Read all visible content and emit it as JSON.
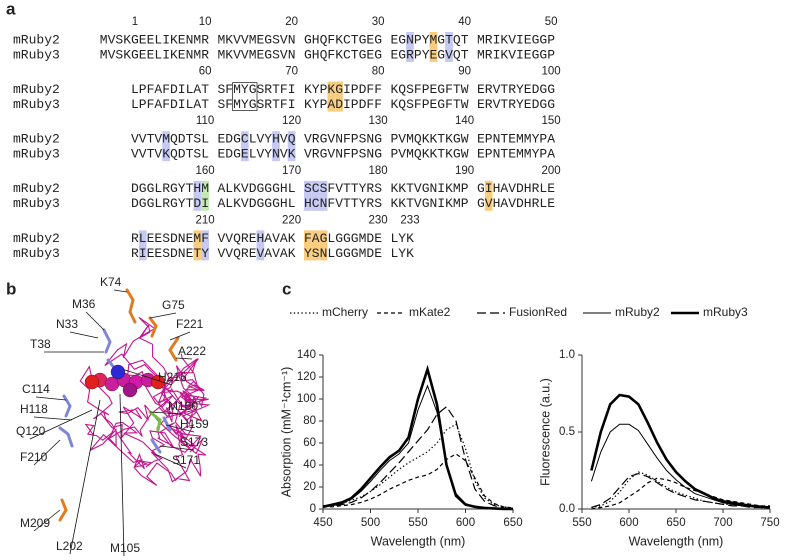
{
  "panel_labels": [
    "a",
    "b",
    "c"
  ],
  "alignment": {
    "rows": [
      {
        "numbers": [
          1,
          10,
          20,
          30,
          40,
          50
        ],
        "seqs": [
          {
            "name": "mRuby2",
            "blocks": [
              "MVSKGEELIKENMR",
              "MKVVMEGSVN",
              "GHQFKCTGEG",
              "EGNPYMGTQT",
              "MRIKVIEGGP"
            ]
          },
          {
            "name": "mRuby3",
            "blocks": [
              "MVSKGEELIKENMR",
              "MKVVMEGSVN",
              "GHQFKCTGEG",
              "EGRPYEGVQT",
              "MRIKVIEGGP"
            ]
          }
        ]
      },
      {
        "numbers": [
          60,
          70,
          80,
          90,
          100
        ],
        "seqs": [
          {
            "name": "mRuby2",
            "blocks": [
              "LPFAFDILAT",
              "SFMYGSRTFI",
              "KYPKGIPDFF",
              "KQSFPEGFTW",
              "ERVTRYEDGG"
            ]
          },
          {
            "name": "mRuby3",
            "blocks": [
              "LPFAFDILAT",
              "SFMYGSRTFI",
              "KYPADIPDFF",
              "KQSFPEGFTW",
              "ERVTRYEDGG"
            ]
          }
        ]
      },
      {
        "numbers": [
          110,
          120,
          130,
          140,
          150
        ],
        "seqs": [
          {
            "name": "mRuby2",
            "blocks": [
              "VVTVMQDTSL",
              "EDGCLVYHVQ",
              "VRGVNFPSNG",
              "PVMQKKTKGW",
              "EPNTEMMYPA"
            ]
          },
          {
            "name": "mRuby3",
            "blocks": [
              "VVTVKQDTSL",
              "EDGELVYNVK",
              "VRGVNFPSNG",
              "PVMQKKTKGW",
              "EPNTEMMYPA"
            ]
          }
        ]
      },
      {
        "numbers": [
          160,
          170,
          180,
          190,
          200
        ],
        "seqs": [
          {
            "name": "mRuby2",
            "blocks": [
              "DGGLRGYTHM",
              "ALKVDGGGHL",
              "SCSFVTTYRS",
              "KKTVGNIKMP",
              "GIHAVDHRLE"
            ]
          },
          {
            "name": "mRuby3",
            "blocks": [
              "DGGLRGYTDI",
              "ALKVDGGGHL",
              "HCNFVTTYRS",
              "KKTVGNIKMP",
              "GVHAVDHRLE"
            ]
          }
        ]
      },
      {
        "numbers": [
          210,
          220,
          230,
          233
        ],
        "seqs": [
          {
            "name": "mRuby2",
            "blocks": [
              "RLEESDNEMF",
              "VVQREHAVAK",
              "FAGLGGGMDE",
              "LYK"
            ]
          },
          {
            "name": "mRuby3",
            "blocks": [
              "RIEESDNETY",
              "VVQREVAVAK",
              "YSNLGGGMDE",
              "LYK"
            ]
          }
        ]
      }
    ]
  },
  "structure": {
    "labels": [
      "K74",
      "G75",
      "M36",
      "N33",
      "F221",
      "T38",
      "A222",
      "H216",
      "C114",
      "M160",
      "H118",
      "H159",
      "Q120",
      "S173",
      "F210",
      "S171",
      "M209",
      "L202",
      "M105"
    ]
  },
  "chart_data": [
    {
      "type": "line",
      "legend": "top",
      "xlabel": "Wavelength (nm)",
      "ylabel": "Absorption (mM⁻¹cm⁻¹)",
      "x": [
        450,
        460,
        470,
        480,
        490,
        500,
        510,
        520,
        530,
        540,
        550,
        560,
        570,
        580,
        590,
        600,
        610,
        620,
        630,
        640,
        650
      ],
      "xlim": [
        450,
        650
      ],
      "xticks": [
        450,
        500,
        550,
        600,
        650
      ],
      "ylim": [
        0,
        140
      ],
      "yticks": [
        0,
        20,
        40,
        60,
        80,
        100,
        120,
        140
      ],
      "series": [
        {
          "name": "mCherry",
          "color": "#000000",
          "dash": "dotted",
          "width": 1.2,
          "values": [
            3,
            4,
            5,
            8,
            11,
            16,
            22,
            29,
            36,
            42,
            47,
            52,
            60,
            72,
            77,
            55,
            25,
            10,
            4,
            2,
            1
          ]
        },
        {
          "name": "mKate2",
          "color": "#000000",
          "dash": "dash",
          "width": 1.2,
          "values": [
            2,
            2,
            3,
            4,
            6,
            9,
            13,
            18,
            22,
            26,
            29,
            31,
            36,
            45,
            50,
            44,
            28,
            12,
            5,
            2,
            1
          ]
        },
        {
          "name": "FusionRed",
          "color": "#000000",
          "dash": "longdash",
          "width": 1.2,
          "values": [
            2,
            3,
            4,
            6,
            10,
            16,
            24,
            33,
            42,
            52,
            62,
            72,
            86,
            93,
            80,
            45,
            18,
            7,
            3,
            1,
            0
          ]
        },
        {
          "name": "mRuby2",
          "color": "#000000",
          "dash": "solid",
          "width": 1,
          "values": [
            2,
            3,
            5,
            9,
            16,
            25,
            35,
            44,
            50,
            60,
            90,
            112,
            88,
            40,
            14,
            5,
            2,
            1,
            0.5,
            0,
            0
          ]
        },
        {
          "name": "mRuby3",
          "color": "#000000",
          "dash": "solid",
          "width": 2.6,
          "values": [
            2,
            4,
            6,
            10,
            18,
            28,
            38,
            47,
            53,
            65,
            100,
            127,
            95,
            40,
            12,
            4,
            2,
            1,
            0.5,
            0,
            0
          ]
        }
      ]
    },
    {
      "type": "line",
      "xlabel": "Wavelength (nm)",
      "ylabel": "Fluorescence (a.u.)",
      "x": [
        560,
        570,
        580,
        590,
        600,
        610,
        620,
        630,
        640,
        650,
        660,
        670,
        680,
        690,
        700,
        710,
        720,
        730,
        740,
        750
      ],
      "xlim": [
        550,
        750
      ],
      "xticks": [
        550,
        600,
        650,
        700,
        750
      ],
      "ylim": [
        0,
        1
      ],
      "yticks": [
        {
          "value": 0,
          "label": "0.0"
        },
        0.5,
        {
          "value": 1,
          "label": "1.0"
        }
      ],
      "series": [
        {
          "name": "mCherry",
          "color": "#000000",
          "dash": "dotted",
          "width": 1.2,
          "values": [
            0.01,
            0.02,
            0.05,
            0.11,
            0.19,
            0.24,
            0.22,
            0.18,
            0.14,
            0.11,
            0.09,
            0.07,
            0.05,
            0.04,
            0.03,
            0.03,
            0.02,
            0.02,
            0.01,
            0.01
          ]
        },
        {
          "name": "mKate2",
          "color": "#000000",
          "dash": "dash",
          "width": 1.2,
          "values": [
            0,
            0.01,
            0.02,
            0.04,
            0.08,
            0.12,
            0.17,
            0.2,
            0.19,
            0.17,
            0.14,
            0.12,
            0.1,
            0.08,
            0.06,
            0.05,
            0.04,
            0.03,
            0.02,
            0.02
          ]
        },
        {
          "name": "FusionRed",
          "color": "#000000",
          "dash": "longdash",
          "width": 1.2,
          "values": [
            0.01,
            0.03,
            0.07,
            0.14,
            0.21,
            0.23,
            0.21,
            0.17,
            0.13,
            0.1,
            0.08,
            0.06,
            0.05,
            0.04,
            0.03,
            0.02,
            0.02,
            0.01,
            0.01,
            0.01
          ]
        },
        {
          "name": "mRuby2",
          "color": "#000000",
          "dash": "solid",
          "width": 1,
          "values": [
            0.18,
            0.37,
            0.5,
            0.55,
            0.55,
            0.51,
            0.42,
            0.33,
            0.25,
            0.19,
            0.14,
            0.1,
            0.08,
            0.06,
            0.04,
            0.03,
            0.02,
            0.02,
            0.01,
            0.01
          ]
        },
        {
          "name": "mRuby3",
          "color": "#000000",
          "dash": "solid",
          "width": 2.6,
          "values": [
            0.25,
            0.5,
            0.68,
            0.74,
            0.73,
            0.68,
            0.56,
            0.43,
            0.32,
            0.24,
            0.18,
            0.13,
            0.1,
            0.07,
            0.05,
            0.04,
            0.03,
            0.02,
            0.015,
            0.01
          ]
        }
      ]
    }
  ]
}
